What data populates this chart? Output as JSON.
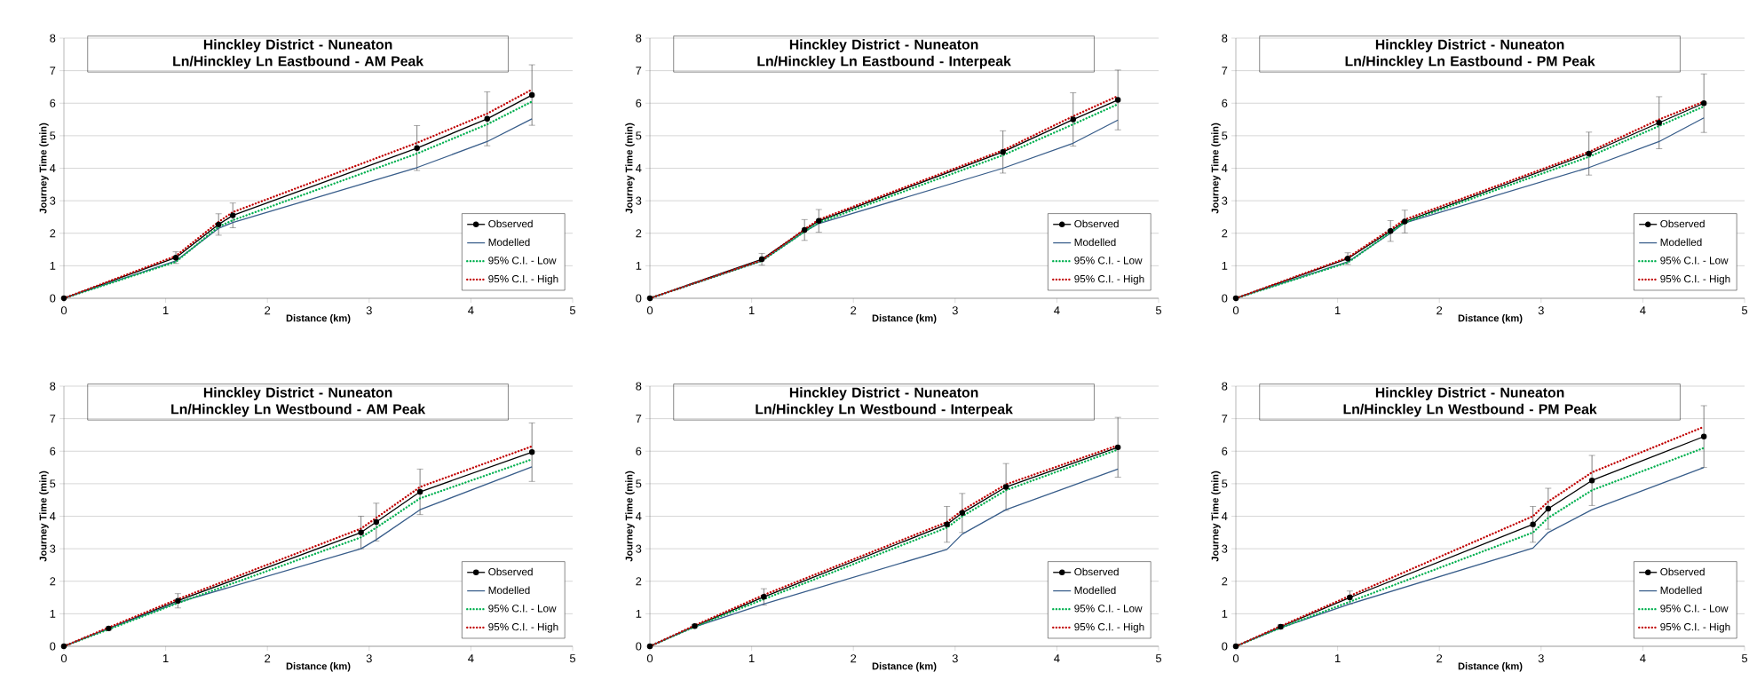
{
  "chart_data": [
    {
      "type": "line",
      "title": "Hinckley District - Nuneaton Ln/Hinckley Ln Eastbound - AM Peak",
      "xlabel": "Distance (km)",
      "ylabel": "Journey Time (min)",
      "x": [
        0,
        1.1,
        1.52,
        1.66,
        3.47,
        4.16,
        4.6
      ],
      "xlim": [
        0,
        5
      ],
      "ylim": [
        0,
        8
      ],
      "xticks": [
        0,
        1,
        2,
        3,
        4,
        5
      ],
      "yticks": [
        0,
        1,
        2,
        3,
        4,
        5,
        6,
        7,
        8
      ],
      "grid": "y",
      "legend": "bottom right",
      "series": [
        {
          "name": "Observed",
          "color": "#000000",
          "marker": "circle",
          "line_style": "solid",
          "values": [
            0,
            1.25,
            2.27,
            2.55,
            4.62,
            5.52,
            6.25
          ],
          "errors": [
            null,
            0.18,
            0.33,
            0.38,
            0.69,
            0.83,
            0.93
          ]
        },
        {
          "name": "Modelled",
          "color": "#385d8a",
          "marker": "none",
          "line_style": "solid",
          "values": [
            0,
            1.15,
            2.15,
            2.33,
            4.02,
            4.82,
            5.52
          ]
        },
        {
          "name": "95% C.I. - Low",
          "color": "#00b050",
          "marker": "none",
          "line_style": "dotted",
          "values": [
            0,
            1.12,
            2.2,
            2.4,
            4.45,
            5.35,
            6.05
          ]
        },
        {
          "name": "95% C.I. - High",
          "color": "#c00000",
          "marker": "none",
          "line_style": "dotted",
          "values": [
            0,
            1.3,
            2.35,
            2.65,
            4.78,
            5.68,
            6.42
          ]
        }
      ]
    },
    {
      "type": "line",
      "title": "Hinckley District - Nuneaton Ln/Hinckley Ln Eastbound - Interpeak",
      "xlabel": "Distance (km)",
      "ylabel": "Journey Time (min)",
      "x": [
        0,
        1.1,
        1.52,
        1.66,
        3.47,
        4.16,
        4.6
      ],
      "xlim": [
        0,
        5
      ],
      "ylim": [
        0,
        8
      ],
      "xticks": [
        0,
        1,
        2,
        3,
        4,
        5
      ],
      "yticks": [
        0,
        1,
        2,
        3,
        4,
        5,
        6,
        7,
        8
      ],
      "grid": "y",
      "legend": "bottom right",
      "series": [
        {
          "name": "Observed",
          "color": "#000000",
          "marker": "circle",
          "line_style": "solid",
          "values": [
            0,
            1.2,
            2.1,
            2.38,
            4.5,
            5.5,
            6.1
          ],
          "errors": [
            null,
            0.18,
            0.32,
            0.35,
            0.65,
            0.82,
            0.92
          ]
        },
        {
          "name": "Modelled",
          "color": "#385d8a",
          "marker": "none",
          "line_style": "solid",
          "values": [
            0,
            1.15,
            2.05,
            2.3,
            4.0,
            4.77,
            5.48
          ]
        },
        {
          "name": "95% C.I. - Low",
          "color": "#00b050",
          "marker": "none",
          "line_style": "dotted",
          "values": [
            0,
            1.15,
            2.05,
            2.33,
            4.4,
            5.35,
            5.97
          ]
        },
        {
          "name": "95% C.I. - High",
          "color": "#c00000",
          "marker": "none",
          "line_style": "dotted",
          "values": [
            0,
            1.17,
            2.12,
            2.42,
            4.55,
            5.6,
            6.22
          ]
        }
      ]
    },
    {
      "type": "line",
      "title": "Hinckley District - Nuneaton Ln/Hinckley Ln Eastbound - PM Peak",
      "xlabel": "Distance (km)",
      "ylabel": "Journey Time (min)",
      "x": [
        0,
        1.1,
        1.52,
        1.66,
        3.47,
        4.16,
        4.6
      ],
      "xlim": [
        0,
        5
      ],
      "ylim": [
        0,
        8
      ],
      "xticks": [
        0,
        1,
        2,
        3,
        4,
        5
      ],
      "yticks": [
        0,
        1,
        2,
        3,
        4,
        5,
        6,
        7,
        8
      ],
      "grid": "y",
      "legend": "bottom right",
      "series": [
        {
          "name": "Observed",
          "color": "#000000",
          "marker": "circle",
          "line_style": "solid",
          "values": [
            0,
            1.22,
            2.07,
            2.36,
            4.45,
            5.4,
            6.0
          ],
          "errors": [
            null,
            0.18,
            0.32,
            0.35,
            0.66,
            0.8,
            0.9
          ]
        },
        {
          "name": "Modelled",
          "color": "#385d8a",
          "marker": "none",
          "line_style": "solid",
          "values": [
            0,
            1.12,
            2.0,
            2.32,
            4.02,
            4.82,
            5.55
          ]
        },
        {
          "name": "95% C.I. - Low",
          "color": "#00b050",
          "marker": "none",
          "line_style": "dotted",
          "values": [
            0,
            1.1,
            2.03,
            2.33,
            4.35,
            5.3,
            5.9
          ]
        },
        {
          "name": "95% C.I. - High",
          "color": "#c00000",
          "marker": "none",
          "line_style": "dotted",
          "values": [
            0,
            1.25,
            2.12,
            2.42,
            4.5,
            5.5,
            6.05
          ]
        }
      ]
    },
    {
      "type": "line",
      "title": "Hinckley District - Nuneaton Ln/Hinckley Ln Westbound - AM Peak",
      "xlabel": "Distance (km)",
      "ylabel": "Journey Time (min)",
      "x": [
        0,
        0.44,
        1.12,
        2.92,
        3.07,
        3.5,
        4.6
      ],
      "xlim": [
        0,
        5
      ],
      "ylim": [
        0,
        8
      ],
      "xticks": [
        0,
        1,
        2,
        3,
        4,
        5
      ],
      "yticks": [
        0,
        1,
        2,
        3,
        4,
        5,
        6,
        7,
        8
      ],
      "grid": "y",
      "legend": "bottom right",
      "series": [
        {
          "name": "Observed",
          "color": "#000000",
          "marker": "circle",
          "line_style": "solid",
          "values": [
            0,
            0.55,
            1.4,
            3.5,
            3.82,
            4.75,
            5.97
          ],
          "errors": [
            null,
            0.05,
            0.22,
            0.5,
            0.58,
            0.7,
            0.9
          ]
        },
        {
          "name": "Modelled",
          "color": "#385d8a",
          "marker": "none",
          "line_style": "solid",
          "values": [
            0,
            0.55,
            1.35,
            3.0,
            3.28,
            4.2,
            5.52
          ]
        },
        {
          "name": "95% C.I. - Low",
          "color": "#00b050",
          "marker": "none",
          "line_style": "dotted",
          "values": [
            0,
            0.52,
            1.33,
            3.35,
            3.65,
            4.55,
            5.75
          ]
        },
        {
          "name": "95% C.I. - High",
          "color": "#c00000",
          "marker": "none",
          "line_style": "dotted",
          "values": [
            0,
            0.58,
            1.45,
            3.62,
            3.95,
            4.9,
            6.15
          ]
        }
      ]
    },
    {
      "type": "line",
      "title": "Hinckley District - Nuneaton Ln/Hinckley Ln Westbound - Interpeak",
      "xlabel": "Distance (km)",
      "ylabel": "Journey Time (min)",
      "x": [
        0,
        0.44,
        1.12,
        2.92,
        3.07,
        3.5,
        4.6
      ],
      "xlim": [
        0,
        5
      ],
      "ylim": [
        0,
        8
      ],
      "xticks": [
        0,
        1,
        2,
        3,
        4,
        5
      ],
      "yticks": [
        0,
        1,
        2,
        3,
        4,
        5,
        6,
        7,
        8
      ],
      "grid": "y",
      "legend": "bottom right",
      "series": [
        {
          "name": "Observed",
          "color": "#000000",
          "marker": "circle",
          "line_style": "solid",
          "values": [
            0,
            0.62,
            1.52,
            3.75,
            4.1,
            4.9,
            6.12
          ],
          "errors": [
            null,
            0.05,
            0.25,
            0.55,
            0.6,
            0.72,
            0.92
          ]
        },
        {
          "name": "Modelled",
          "color": "#385d8a",
          "marker": "none",
          "line_style": "solid",
          "values": [
            0,
            0.6,
            1.3,
            2.98,
            3.45,
            4.2,
            5.45
          ]
        },
        {
          "name": "95% C.I. - Low",
          "color": "#00b050",
          "marker": "none",
          "line_style": "dotted",
          "values": [
            0,
            0.6,
            1.45,
            3.65,
            4.0,
            4.8,
            6.05
          ]
        },
        {
          "name": "95% C.I. - High",
          "color": "#c00000",
          "marker": "none",
          "line_style": "dotted",
          "values": [
            0,
            0.64,
            1.58,
            3.82,
            4.18,
            4.98,
            6.18
          ]
        }
      ]
    },
    {
      "type": "line",
      "title": "Hinckley District - Nuneaton Ln/Hinckley Ln Westbound - PM Peak",
      "xlabel": "Distance (km)",
      "ylabel": "Journey Time (min)",
      "x": [
        0,
        0.44,
        1.12,
        2.92,
        3.07,
        3.5,
        4.6
      ],
      "xlim": [
        0,
        5
      ],
      "ylim": [
        0,
        8
      ],
      "xticks": [
        0,
        1,
        2,
        3,
        4,
        5
      ],
      "yticks": [
        0,
        1,
        2,
        3,
        4,
        5,
        6,
        7,
        8
      ],
      "grid": "y",
      "legend": "bottom right",
      "series": [
        {
          "name": "Observed",
          "color": "#000000",
          "marker": "circle",
          "line_style": "solid",
          "values": [
            0,
            0.6,
            1.5,
            3.75,
            4.23,
            5.1,
            6.45
          ],
          "errors": [
            null,
            0.06,
            0.2,
            0.55,
            0.63,
            0.77,
            0.95
          ]
        },
        {
          "name": "Modelled",
          "color": "#385d8a",
          "marker": "none",
          "line_style": "solid",
          "values": [
            0,
            0.57,
            1.3,
            3.02,
            3.5,
            4.2,
            5.5
          ]
        },
        {
          "name": "95% C.I. - Low",
          "color": "#00b050",
          "marker": "none",
          "line_style": "dotted",
          "values": [
            0,
            0.57,
            1.37,
            3.5,
            3.95,
            4.8,
            6.1
          ]
        },
        {
          "name": "95% C.I. - High",
          "color": "#c00000",
          "marker": "none",
          "line_style": "dotted",
          "values": [
            0,
            0.62,
            1.55,
            4.0,
            4.45,
            5.35,
            6.75
          ]
        }
      ]
    }
  ]
}
